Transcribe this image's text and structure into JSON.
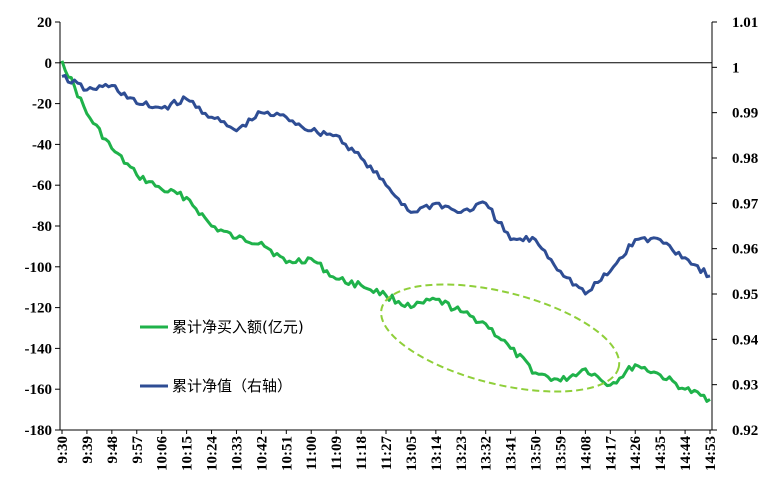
{
  "chart_data": {
    "type": "line",
    "x": [
      "9:30",
      "9:39",
      "9:48",
      "9:57",
      "10:06",
      "10:15",
      "10:24",
      "10:33",
      "10:42",
      "10:51",
      "11:00",
      "11:09",
      "11:18",
      "11:27",
      "13:05",
      "13:14",
      "13:23",
      "13:32",
      "13:41",
      "13:50",
      "13:59",
      "14:08",
      "14:17",
      "14:26",
      "14:35",
      "14:44",
      "14:53"
    ],
    "ylim_left": [
      -180,
      20
    ],
    "ylim_right": [
      0.92,
      1.01
    ],
    "left_ticks": [
      "20",
      "0",
      "-20",
      "-40",
      "-60",
      "-80",
      "-100",
      "-120",
      "-140",
      "-160",
      "-180"
    ],
    "right_ticks": [
      "1.01",
      "1",
      "0.99",
      "0.98",
      "0.97",
      "0.96",
      "0.95",
      "0.94",
      "0.93",
      "0.92"
    ],
    "legend_position": "center-left",
    "annotation": "dashed green ellipse around 11:27–14:17 segment",
    "series": [
      {
        "name": "累计净买入额(亿元)",
        "axis": "left",
        "color": "#1fb24a",
        "values": [
          1,
          -25,
          -42,
          -55,
          -62,
          -66,
          -80,
          -86,
          -88,
          -98,
          -96,
          -106,
          -109,
          -114,
          -120,
          -116,
          -122,
          -128,
          -140,
          -152,
          -156,
          -150,
          -158,
          -148,
          -153,
          -160,
          -165
        ]
      },
      {
        "name": "累计净值（右轴）",
        "axis": "right",
        "color": "#2e4d94",
        "values": [
          0.998,
          0.995,
          0.996,
          0.992,
          0.991,
          0.993,
          0.989,
          0.986,
          0.99,
          0.989,
          0.986,
          0.985,
          0.98,
          0.974,
          0.968,
          0.97,
          0.968,
          0.97,
          0.962,
          0.962,
          0.955,
          0.95,
          0.955,
          0.962,
          0.962,
          0.958,
          0.954
        ]
      }
    ]
  }
}
